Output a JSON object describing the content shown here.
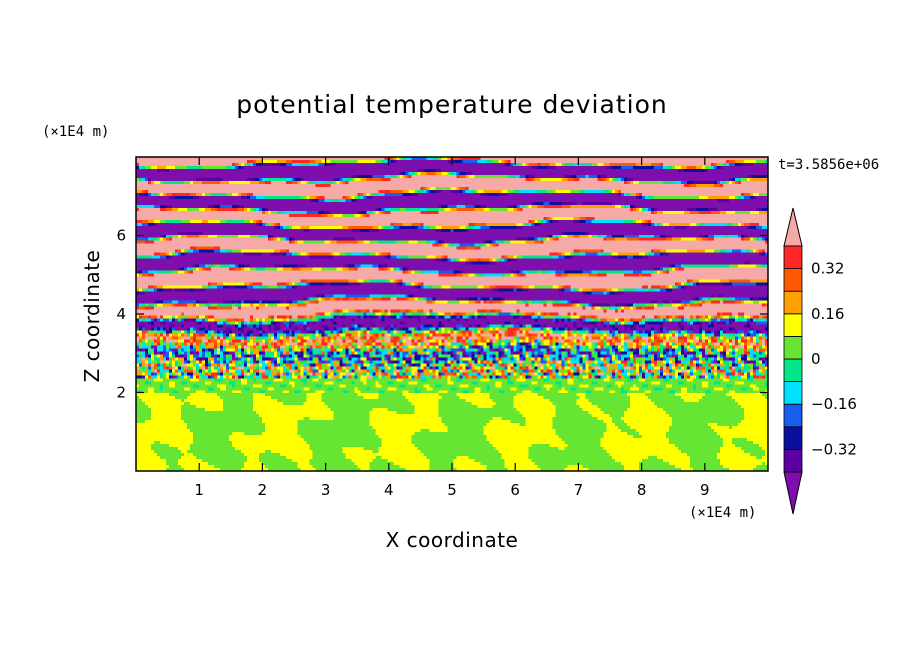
{
  "chart_data": {
    "type": "heatmap",
    "title": "potential temperature deviation",
    "xlabel": "X coordinate",
    "ylabel": "Z coordinate",
    "x_unit": "(×1E4 m)",
    "y_unit": "(×1E4 m)",
    "time_label": "t=3.5856e+06",
    "xlim": [
      0,
      10
    ],
    "ylim": [
      0,
      8
    ],
    "x_ticks": [
      1,
      2,
      3,
      4,
      5,
      6,
      7,
      8,
      9
    ],
    "y_ticks": [
      2,
      4,
      6
    ],
    "grid": false,
    "colorbar": {
      "position": "right",
      "labels": [
        "0.32",
        "0.16",
        "0",
        "−0.16",
        "−0.32"
      ],
      "label_values": [
        0.32,
        0.16,
        0,
        -0.16,
        -0.32
      ],
      "levels": [
        -0.4,
        -0.32,
        -0.24,
        -0.16,
        -0.08,
        0,
        0.08,
        0.16,
        0.24,
        0.32,
        0.4
      ],
      "colors": [
        "#5c00a3",
        "#0a0f9e",
        "#1a5cf0",
        "#00e0ff",
        "#00e688",
        "#66e633",
        "#ffff00",
        "#ffa000",
        "#ff5a00",
        "#ff2626"
      ],
      "under_color": "#7e0fae",
      "over_color": "#f5aaa7",
      "extend": "both"
    },
    "field_description_regions": {
      "z_0_to_2": "green (0 to 0.08) and light green (0.08 to 0.16) convective cells",
      "z_2_to_4.5": "mixed multi-color fine-scale layers",
      "z_4.5_to_8": "alternating purple (below -0.40) and pink (above 0.40) horizontal bands"
    }
  },
  "colors": {
    "frame": "#000000",
    "background": "#ffffff"
  }
}
